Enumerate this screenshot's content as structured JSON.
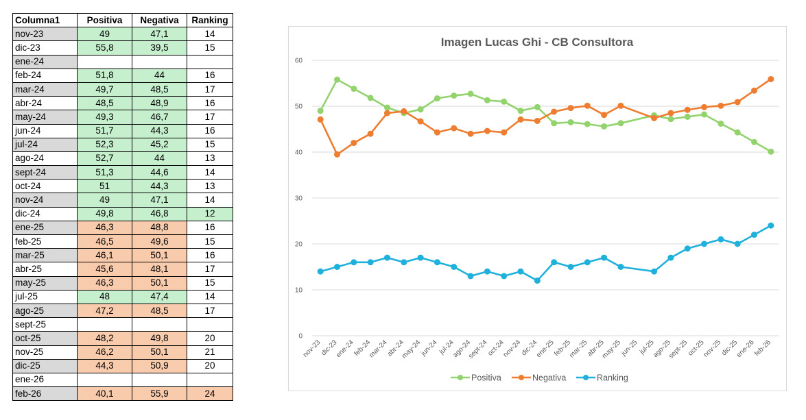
{
  "table": {
    "headers": [
      "Columna1",
      "Positiva",
      "Negativa",
      "Ranking"
    ],
    "rows": [
      {
        "label": "nov-23",
        "pos": "49",
        "neg": "47,1",
        "rank": "14",
        "lc": "grey",
        "vc": "green",
        "rc": "white"
      },
      {
        "label": "dic-23",
        "pos": "55,8",
        "neg": "39,5",
        "rank": "15",
        "lc": "white",
        "vc": "green",
        "rc": "white"
      },
      {
        "label": "ene-24",
        "pos": "",
        "neg": "",
        "rank": "",
        "lc": "grey",
        "vc": "white",
        "rc": "white"
      },
      {
        "label": "feb-24",
        "pos": "51,8",
        "neg": "44",
        "rank": "16",
        "lc": "white",
        "vc": "green",
        "rc": "white"
      },
      {
        "label": "mar-24",
        "pos": "49,7",
        "neg": "48,5",
        "rank": "17",
        "lc": "grey",
        "vc": "green",
        "rc": "white"
      },
      {
        "label": "abr-24",
        "pos": "48,5",
        "neg": "48,9",
        "rank": "16",
        "lc": "white",
        "vc": "green",
        "rc": "white"
      },
      {
        "label": "may-24",
        "pos": "49,3",
        "neg": "46,7",
        "rank": "17",
        "lc": "grey",
        "vc": "green",
        "rc": "white"
      },
      {
        "label": "jun-24",
        "pos": "51,7",
        "neg": "44,3",
        "rank": "16",
        "lc": "white",
        "vc": "green",
        "rc": "white"
      },
      {
        "label": "jul-24",
        "pos": "52,3",
        "neg": "45,2",
        "rank": "15",
        "lc": "grey",
        "vc": "green",
        "rc": "white"
      },
      {
        "label": "ago-24",
        "pos": "52,7",
        "neg": "44",
        "rank": "13",
        "lc": "white",
        "vc": "green",
        "rc": "white"
      },
      {
        "label": "sept-24",
        "pos": "51,3",
        "neg": "44,6",
        "rank": "14",
        "lc": "grey",
        "vc": "green",
        "rc": "white"
      },
      {
        "label": "oct-24",
        "pos": "51",
        "neg": "44,3",
        "rank": "13",
        "lc": "white",
        "vc": "green",
        "rc": "white"
      },
      {
        "label": "nov-24",
        "pos": "49",
        "neg": "47,1",
        "rank": "14",
        "lc": "grey",
        "vc": "green",
        "rc": "white"
      },
      {
        "label": "dic-24",
        "pos": "49,8",
        "neg": "46,8",
        "rank": "12",
        "lc": "white",
        "vc": "green",
        "rc": "green"
      },
      {
        "label": "ene-25",
        "pos": "46,3",
        "neg": "48,8",
        "rank": "16",
        "lc": "grey",
        "vc": "orange",
        "rc": "white"
      },
      {
        "label": "feb-25",
        "pos": "46,5",
        "neg": "49,6",
        "rank": "15",
        "lc": "white",
        "vc": "orange",
        "rc": "white"
      },
      {
        "label": "mar-25",
        "pos": "46,1",
        "neg": "50,1",
        "rank": "16",
        "lc": "grey",
        "vc": "orange",
        "rc": "white"
      },
      {
        "label": "abr-25",
        "pos": "45,6",
        "neg": "48,1",
        "rank": "17",
        "lc": "white",
        "vc": "orange",
        "rc": "white"
      },
      {
        "label": "may-25",
        "pos": "46,3",
        "neg": "50,1",
        "rank": "15",
        "lc": "grey",
        "vc": "orange",
        "rc": "white"
      },
      {
        "label": "jul-25",
        "pos": "48",
        "neg": "47,4",
        "rank": "14",
        "lc": "white",
        "vc": "green",
        "rc": "white"
      },
      {
        "label": "ago-25",
        "pos": "47,2",
        "neg": "48,5",
        "rank": "17",
        "lc": "grey",
        "vc": "orange",
        "rc": "white"
      },
      {
        "label": "sept-25",
        "pos": "",
        "neg": "",
        "rank": "",
        "lc": "white",
        "vc": "white",
        "rc": "white"
      },
      {
        "label": "oct-25",
        "pos": "48,2",
        "neg": "49,8",
        "rank": "20",
        "lc": "grey",
        "vc": "orange",
        "rc": "white"
      },
      {
        "label": "nov-25",
        "pos": "46,2",
        "neg": "50,1",
        "rank": "21",
        "lc": "white",
        "vc": "orange",
        "rc": "white"
      },
      {
        "label": "dic-25",
        "pos": "44,3",
        "neg": "50,9",
        "rank": "20",
        "lc": "grey",
        "vc": "orange",
        "rc": "white"
      },
      {
        "label": "ene-26",
        "pos": "",
        "neg": "",
        "rank": "",
        "lc": "white",
        "vc": "white",
        "rc": "white"
      },
      {
        "label": "feb-26",
        "pos": "40,1",
        "neg": "55,9",
        "rank": "24",
        "lc": "grey",
        "vc": "orange",
        "rc": "orange"
      }
    ]
  },
  "chart_data": {
    "type": "line",
    "title": "Imagen Lucas Ghi - CB Consultora",
    "categories": [
      "nov-23",
      "dic-23",
      "ene-24",
      "feb-24",
      "mar-24",
      "abr-24",
      "may-24",
      "jun-24",
      "jul-24",
      "ago-24",
      "sept-24",
      "oct-24",
      "nov-24",
      "dic-24",
      "ene-25",
      "feb-25",
      "mar-25",
      "abr-25",
      "may-25",
      "jun-25",
      "jul-25",
      "ago-25",
      "sept-25",
      "oct-25",
      "nov-25",
      "dic-25",
      "ene-26",
      "feb-26"
    ],
    "ylim": [
      0,
      60
    ],
    "yticks": [
      0,
      10,
      20,
      30,
      40,
      50,
      60
    ],
    "grid": true,
    "legend_position": "bottom",
    "series": [
      {
        "name": "Positiva",
        "color": "#92d36e",
        "values": [
          49,
          55.8,
          53.8,
          51.8,
          49.7,
          48.5,
          49.3,
          51.7,
          52.3,
          52.7,
          51.3,
          51,
          49,
          49.8,
          46.3,
          46.5,
          46.1,
          45.6,
          46.3,
          null,
          48,
          47.2,
          47.7,
          48.2,
          46.2,
          44.3,
          42.2,
          40.1
        ]
      },
      {
        "name": "Negativa",
        "color": "#ed7d31",
        "values": [
          47.1,
          39.5,
          42,
          44,
          48.5,
          48.9,
          46.7,
          44.3,
          45.2,
          44,
          44.6,
          44.3,
          47.1,
          46.8,
          48.8,
          49.6,
          50.1,
          48.1,
          50.1,
          null,
          47.4,
          48.5,
          49.2,
          49.8,
          50.1,
          50.9,
          53.4,
          55.9
        ]
      },
      {
        "name": "Ranking",
        "color": "#1fb0dc",
        "values": [
          14,
          15,
          16,
          16,
          17,
          16,
          17,
          16,
          15,
          13,
          14,
          13,
          14,
          12,
          16,
          15,
          16,
          17,
          15,
          null,
          14,
          17,
          19,
          20,
          21,
          20,
          22,
          24
        ]
      }
    ]
  }
}
